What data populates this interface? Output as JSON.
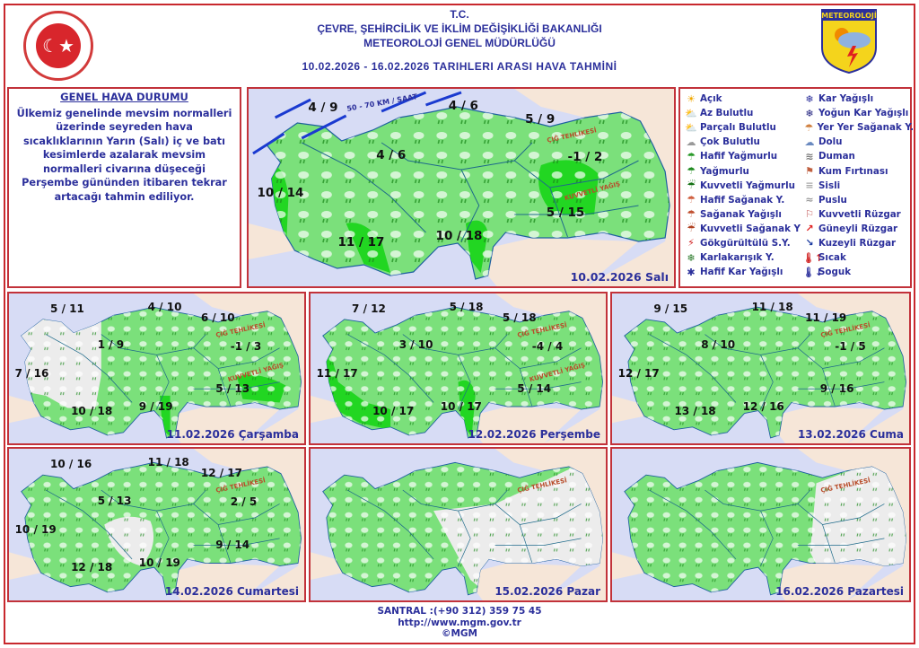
{
  "header": {
    "line1": "T.C.",
    "line2": "ÇEVRE, ŞEHİRCİLİK VE İKLİM DEĞİŞİKLİĞİ BAKANLIĞI",
    "line3": "METEOROLOJİ GENEL MÜDÜRLÜĞÜ",
    "date_range": "10.02.2026 - 16.02.2026 TARIHLERI ARASI HAVA TAHMİNİ",
    "logo_text": "METEOROLOJİ"
  },
  "summary": {
    "title": "GENEL HAVA DURUMU",
    "text": "Ülkemiz genelinde mevsim normalleri üzerinde seyreden hava sıcaklıklarının Yarın (Salı) iç ve batı kesimlerde azalarak mevsim normalleri civarına düşeceği Perşembe gününden itibaren tekrar artacağı tahmin ediliyor."
  },
  "legend": [
    {
      "label": "Açık",
      "icon": "sun-icon",
      "glyph": "☀",
      "color": "#f0a800"
    },
    {
      "label": "Az Bulutlu",
      "icon": "sun-cloud-icon",
      "glyph": "⛅",
      "color": "#e0a020"
    },
    {
      "label": "Parçalı Bulutlu",
      "icon": "partly-cloudy-icon",
      "glyph": "⛅",
      "color": "#d88a40"
    },
    {
      "label": "Çok Bulutlu",
      "icon": "cloud-icon",
      "glyph": "☁",
      "color": "#999"
    },
    {
      "label": "Hafif Yağmurlu",
      "icon": "light-rain-icon",
      "glyph": "☂",
      "color": "#2a9a2a"
    },
    {
      "label": "Yağmurlu",
      "icon": "rain-icon",
      "glyph": "☂",
      "color": "#1f8a1f"
    },
    {
      "label": "Kuvvetli Yağmurlu",
      "icon": "heavy-rain-icon",
      "glyph": "☔",
      "color": "#127012"
    },
    {
      "label": "Hafif Sağanak Y.",
      "icon": "light-shower-icon",
      "glyph": "☂",
      "color": "#d06040"
    },
    {
      "label": "Sağanak Yağışlı",
      "icon": "shower-icon",
      "glyph": "☂",
      "color": "#c05030"
    },
    {
      "label": "Kuvvetli Sağanak Y",
      "icon": "heavy-shower-icon",
      "glyph": "☔",
      "color": "#b04020"
    },
    {
      "label": "Gökgürültülü S.Y.",
      "icon": "thunderstorm-icon",
      "glyph": "⚡",
      "color": "#d02020"
    },
    {
      "label": "Karlakarışık Y.",
      "icon": "sleet-icon",
      "glyph": "❄",
      "color": "#2a7a2a"
    },
    {
      "label": "Hafif Kar Yağışlı",
      "icon": "light-snow-icon",
      "glyph": "✱",
      "color": "#2b2f9b"
    },
    {
      "label": "Kar Yağışlı",
      "icon": "snow-icon",
      "glyph": "❄",
      "color": "#2b2f9b"
    },
    {
      "label": "Yoğun Kar Yağışlı",
      "icon": "heavy-snow-icon",
      "glyph": "❄",
      "color": "#1a1a7a"
    },
    {
      "label": "Yer Yer Sağanak Y.",
      "icon": "scattered-shower-icon",
      "glyph": "☂",
      "color": "#d08040"
    },
    {
      "label": "Dolu",
      "icon": "hail-icon",
      "glyph": "☁",
      "color": "#6a8ac0"
    },
    {
      "label": "Duman",
      "icon": "smoke-icon",
      "glyph": "≋",
      "color": "#777"
    },
    {
      "label": "Kum Fırtınası",
      "icon": "sandstorm-icon",
      "glyph": "⚑",
      "color": "#c06040"
    },
    {
      "label": "Sisli",
      "icon": "fog-icon",
      "glyph": "≡",
      "color": "#aaa"
    },
    {
      "label": "Puslu",
      "icon": "mist-icon",
      "glyph": "≈",
      "color": "#999"
    },
    {
      "label": "Kuvvetli Rüzgar",
      "icon": "strong-wind-icon",
      "glyph": "⚐",
      "color": "#c05050"
    },
    {
      "label": "Güneyli Rüzgar",
      "icon": "south-wind-arrow-icon",
      "glyph": "↗",
      "color": "#e02020"
    },
    {
      "label": "Kuzeyli Rüzgar",
      "icon": "north-wind-arrow-icon",
      "glyph": "↘",
      "color": "#1a3aa0"
    },
    {
      "label": "Sıcak",
      "icon": "hot-thermometer-icon",
      "glyph": "🌡↑",
      "color": "#d02020"
    },
    {
      "label": "Soguk",
      "icon": "cold-thermometer-icon",
      "glyph": "🌡↓",
      "color": "#2b2f9b"
    }
  ],
  "maps": [
    {
      "caption": "10.02.2026 Salı",
      "temps": [
        "4 / 9",
        "4 / 6",
        "5 / 9",
        "4 / 6",
        "-1 / 2",
        "10 / 14",
        "5 / 15",
        "11 / 17",
        "10 / 18"
      ],
      "wind_label": "50 - 70 KM / SAAT",
      "avalanche_label": "ÇIĞ TEHLİKESİ",
      "heavy_rain_label": "KUVVETLİ YAĞIŞ"
    },
    {
      "caption": "11.02.2026 Çarşamba",
      "temps": [
        "5 / 11",
        "4 / 10",
        "6 / 10",
        "1 / 9",
        "-1 / 3",
        "7 / 16",
        "5 / 13",
        "10 / 18",
        "9 / 19"
      ],
      "avalanche_label": "ÇIĞ TEHLİKESİ",
      "heavy_rain_label": "KUVVETLİ YAĞIŞ"
    },
    {
      "caption": "12.02.2026 Perşembe",
      "temps": [
        "7 / 12",
        "5 / 18",
        "5 / 18",
        "3 / 10",
        "-4 / 4",
        "11 / 17",
        "5 / 14",
        "10 / 17",
        "10 / 17"
      ],
      "avalanche_label": "ÇIĞ TEHLİKESİ",
      "heavy_rain_label": "KUVVETLİ YAĞIŞ"
    },
    {
      "caption": "13.02.2026 Cuma",
      "temps": [
        "9 / 15",
        "11 / 18",
        "11 / 19",
        "8 / 10",
        "-1 / 5",
        "12 / 17",
        "9 / 16",
        "13 / 18",
        "12 / 16"
      ],
      "avalanche_label": "ÇIĞ TEHLİKESİ"
    },
    {
      "caption": "14.02.2026 Cumartesi",
      "temps": [
        "10 / 16",
        "11 / 18",
        "12 / 17",
        "5 / 13",
        "2 / 5",
        "10 / 19",
        "9 / 14",
        "12 / 18",
        "10 / 19"
      ],
      "avalanche_label": "ÇIĞ TEHLİKESİ"
    },
    {
      "caption": "15.02.2026 Pazar",
      "temps": [],
      "avalanche_label": "ÇIĞ TEHLİKESİ"
    },
    {
      "caption": "16.02.2026 Pazartesi",
      "temps": [],
      "avalanche_label": "ÇIĞ TEHLİKESİ"
    }
  ],
  "colors": {
    "accent_red": "#c8282d",
    "text_blue": "#2b2f9b",
    "land_green": "#7be07b",
    "sea": "#d7dcf5",
    "heavy_rain_green": "#22d622"
  },
  "footer": {
    "phone": "SANTRAL :(+90 312) 359 75 45",
    "url": "http://www.mgm.gov.tr",
    "copyright": "©MGM"
  }
}
